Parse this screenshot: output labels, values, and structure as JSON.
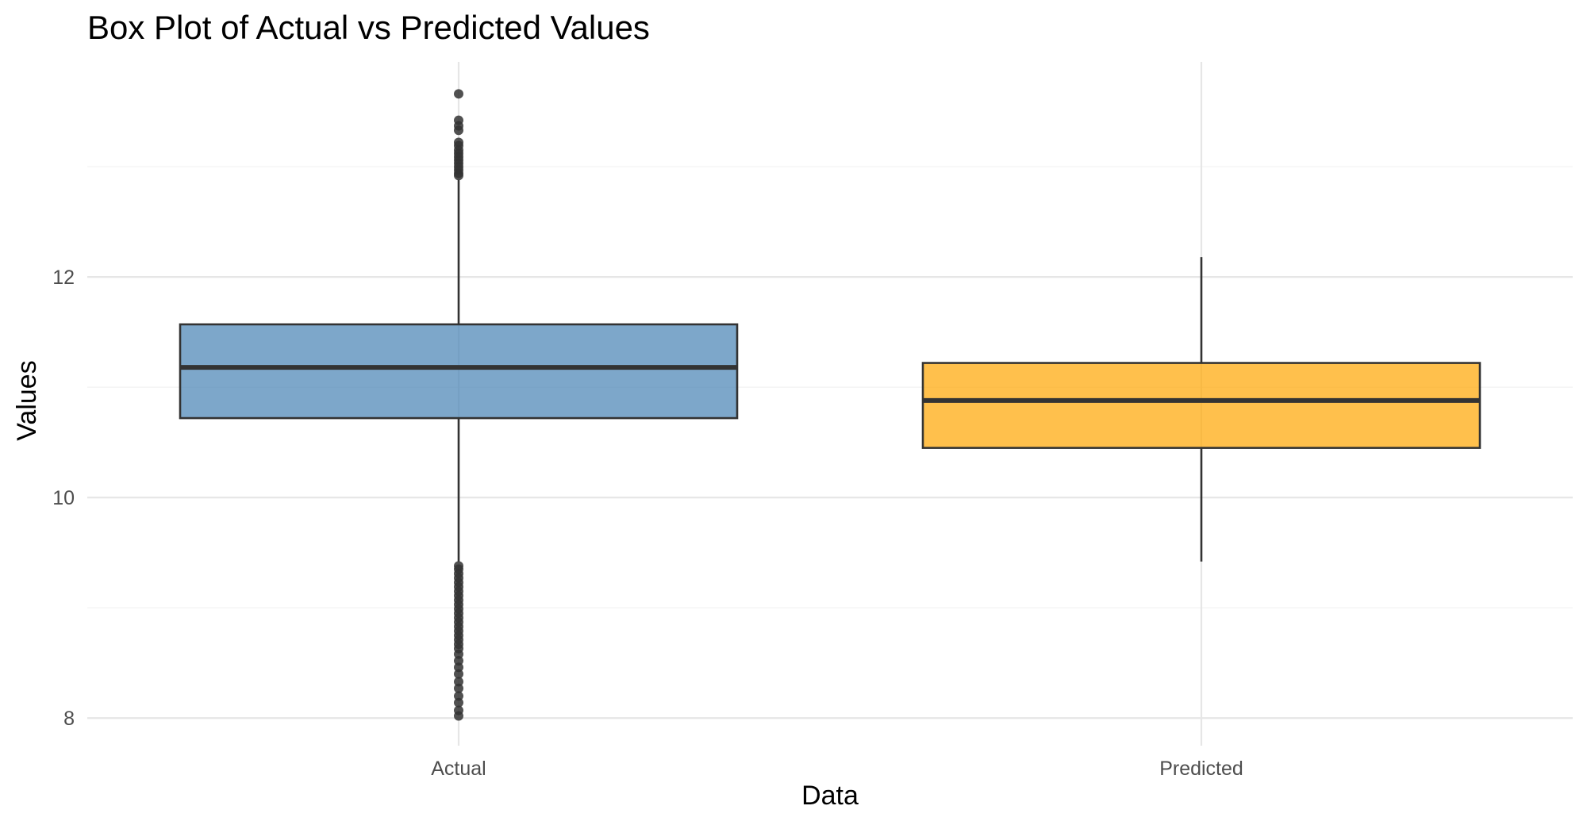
{
  "chart_data": {
    "type": "box",
    "title": "Box Plot of Actual vs Predicted Values",
    "xlabel": "Data",
    "ylabel": "Values",
    "categories": [
      "Actual",
      "Predicted"
    ],
    "ylim": [
      7.75,
      13.95
    ],
    "yticks": [
      8,
      10,
      12
    ],
    "grid": true,
    "legend": "none",
    "series": [
      {
        "category": "Actual",
        "color": "#4682B4",
        "whisker_low": 9.42,
        "q1": 10.72,
        "median": 11.18,
        "q3": 11.57,
        "whisker_high": 12.88,
        "outliers_high": [
          13.66,
          13.42,
          13.37,
          13.33,
          13.22,
          13.19,
          13.15,
          13.12,
          13.09,
          13.06,
          13.03,
          13.0,
          12.97,
          12.94,
          12.92
        ],
        "outliers_low": [
          9.38,
          9.35,
          9.31,
          9.27,
          9.23,
          9.19,
          9.15,
          9.11,
          9.07,
          9.03,
          8.99,
          8.95,
          8.91,
          8.87,
          8.83,
          8.79,
          8.75,
          8.71,
          8.67,
          8.63,
          8.58,
          8.52,
          8.46,
          8.4,
          8.33,
          8.27,
          8.2,
          8.14,
          8.07,
          8.02
        ]
      },
      {
        "category": "Predicted",
        "color": "#FFA500",
        "whisker_low": 9.42,
        "q1": 10.45,
        "median": 10.88,
        "q3": 11.22,
        "whisker_high": 12.18,
        "outliers_high": [],
        "outliers_low": []
      }
    ]
  }
}
